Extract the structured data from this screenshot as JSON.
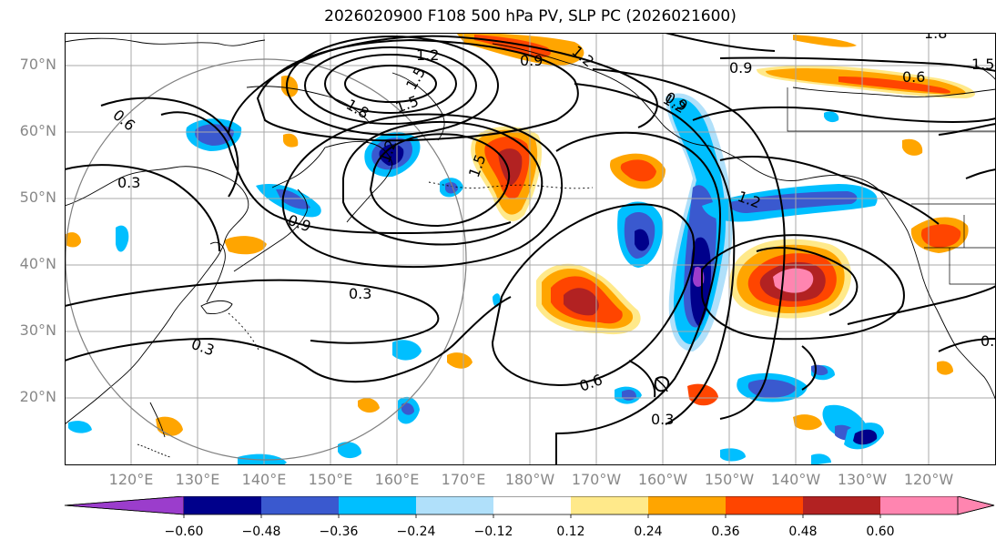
{
  "title": "2026020900 F108 500 hPa PV, SLP PC (2026021600)",
  "lat_labels": [
    "70°N",
    "60°N",
    "50°N",
    "40°N",
    "30°N",
    "20°N"
  ],
  "lon_labels": [
    "120°E",
    "130°E",
    "140°E",
    "150°E",
    "160°E",
    "170°E",
    "180°W",
    "170°W",
    "160°W",
    "150°W",
    "140°W",
    "130°W",
    "120°W"
  ],
  "contour_labels": [
    "1.2",
    "1.2",
    "0.9",
    "1.2",
    "1.8",
    "1.5",
    "1.5",
    "0.9",
    "0.6",
    "1.8",
    "1.5",
    "0.6",
    "0.3",
    "0.9",
    "1.5",
    "1.2",
    "0.3",
    "0.3",
    "0.6",
    "0.3",
    "1.2",
    "0.9",
    "0.6"
  ],
  "colorbar": {
    "ticks": [
      "−0.60",
      "−0.48",
      "−0.36",
      "−0.24",
      "−0.12",
      "0.12",
      "0.24",
      "0.36",
      "0.48",
      "0.60"
    ],
    "colors": [
      "#9b3dcc",
      "#00008b",
      "#3a59cf",
      "#00bfff",
      "#b0e0fa",
      "#ffffff",
      "#ffe98a",
      "#ffa500",
      "#ff4500",
      "#b22222",
      "#ff85b0",
      "#ff85b0"
    ]
  },
  "colors": {
    "pos_light": "#ffe98a",
    "pos_orange": "#ffa500",
    "pos_red": "#ff4500",
    "pos_dark": "#b22222",
    "pos_pink": "#ff85b0",
    "neg_light": "#b0e0fa",
    "neg_cyan": "#00bfff",
    "neg_blue": "#3a59cf",
    "neg_navy": "#00008b",
    "neg_purple": "#9b3dcc"
  }
}
